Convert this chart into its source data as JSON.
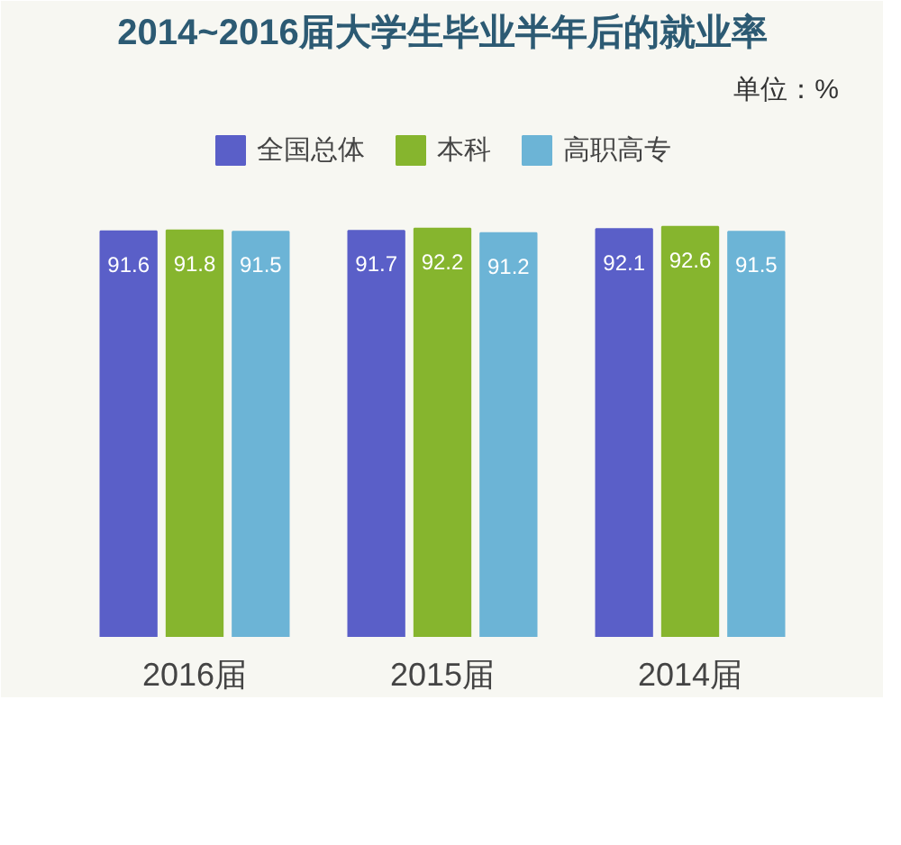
{
  "chart_data": {
    "type": "bar",
    "title": "2014~2016届大学生毕业半年后的就业率",
    "categories": [
      "2016届",
      "2015届",
      "2014届"
    ],
    "series": [
      {
        "name": "全国总体",
        "color": "#5a5fc8",
        "values": [
          91.6,
          91.7,
          92.1
        ]
      },
      {
        "name": "本科",
        "color": "#86b52e",
        "values": [
          91.8,
          92.2,
          92.6
        ]
      },
      {
        "name": "高职高专",
        "color": "#6cb4d6",
        "values": [
          91.5,
          91.2,
          91.5
        ]
      }
    ],
    "ylim": [
      0,
      118
    ],
    "tick_labels": "x",
    "data_labels": true,
    "legend": "top",
    "grid": false,
    "annotations": [
      "单位：%"
    ]
  }
}
